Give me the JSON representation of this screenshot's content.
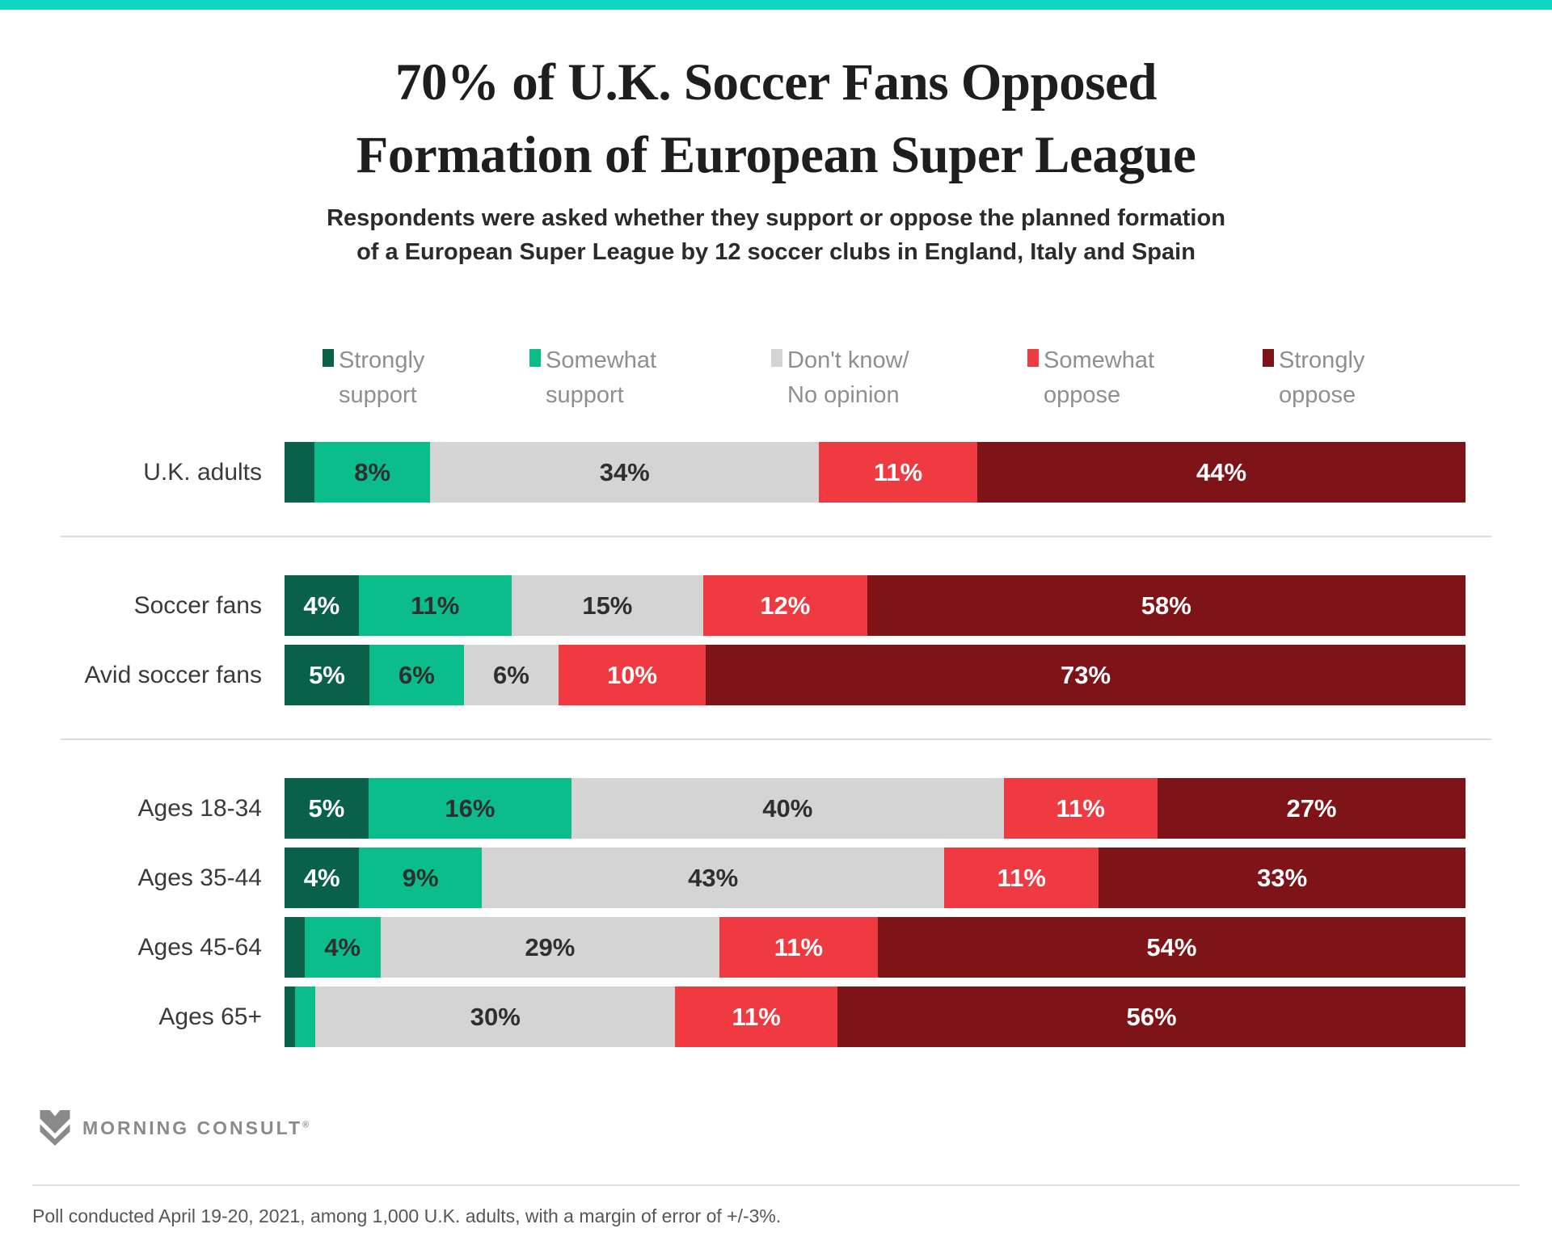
{
  "page": {
    "accent_color": "#11d6c4",
    "title_line1": "70% of U.K. Soccer Fans Opposed",
    "title_line2": "Formation of European Super League",
    "subtitle_line1": "Respondents were asked whether they support or oppose the planned formation",
    "subtitle_line2": "of a European Super League by 12 soccer clubs in England, Italy and Spain",
    "footer": "Poll conducted April 19-20, 2021, among 1,000 U.K. adults, with a margin of error of +/-3%.",
    "logo_text": "MORNING CONSULT",
    "logo_registered_mark": "®"
  },
  "chart_data": {
    "type": "bar",
    "subtype": "stacked-horizontal-percent",
    "orientation": "horizontal",
    "unit": "%",
    "x_range": [
      0,
      100
    ],
    "legend_position": "top",
    "series_names": [
      "Strongly support",
      "Somewhat support",
      "Don't know/ No opinion",
      "Somewhat oppose",
      "Strongly oppose"
    ],
    "series_colors": [
      "#0a6149",
      "#0cbd8c",
      "#d4d4d4",
      "#ee3a40",
      "#7e1418"
    ],
    "label_text_colors": [
      "#ffffff",
      "#2f2f2f",
      "#2f2f2f",
      "#ffffff",
      "#ffffff"
    ],
    "legend": [
      {
        "line1": "Strongly",
        "line2": "support",
        "color": "#0a6149"
      },
      {
        "line1": "Somewhat",
        "line2": "support",
        "color": "#0cbd8c"
      },
      {
        "line1": "Don't know/",
        "line2": "No opinion",
        "color": "#d4d4d4"
      },
      {
        "line1": "Somewhat",
        "line2": "oppose",
        "color": "#ee3a40"
      },
      {
        "line1": "Strongly",
        "line2": "oppose",
        "color": "#7e1418"
      }
    ],
    "groups": [
      {
        "rows": [
          {
            "label": "U.K. adults",
            "values": [
              3,
              8,
              34,
              11,
              44
            ],
            "segment_labels": [
              "",
              "8%",
              "34%",
              "11%",
              "44%"
            ]
          }
        ]
      },
      {
        "rows": [
          {
            "label": "Soccer fans",
            "values": [
              4,
              11,
              15,
              12,
              58
            ],
            "segment_labels": [
              "4%",
              "11%",
              "15%",
              "12%",
              "58%"
            ]
          },
          {
            "label": "Avid soccer fans",
            "values": [
              5,
              6,
              6,
              10,
              73
            ],
            "segment_labels": [
              "5%",
              "6%",
              "6%",
              "10%",
              "73%"
            ]
          }
        ]
      },
      {
        "rows": [
          {
            "label": "Ages 18-34",
            "values": [
              5,
              16,
              40,
              11,
              27
            ],
            "segment_labels": [
              "5%",
              "16%",
              "40%",
              "11%",
              "27%"
            ]
          },
          {
            "label": "Ages 35-44",
            "values": [
              4,
              9,
              43,
              11,
              33
            ],
            "segment_labels": [
              "4%",
              "9%",
              "43%",
              "11%",
              "33%"
            ]
          },
          {
            "label": "Ages 45-64",
            "values": [
              2,
              4,
              29,
              11,
              54
            ],
            "segment_labels": [
              "",
              "4%",
              "29%",
              "11%",
              "54%"
            ]
          },
          {
            "label": "Ages 65+",
            "values": [
              1,
              2,
              30,
              11,
              56
            ],
            "segment_labels": [
              "",
              "",
              "30%",
              "11%",
              "56%"
            ]
          }
        ]
      }
    ]
  }
}
